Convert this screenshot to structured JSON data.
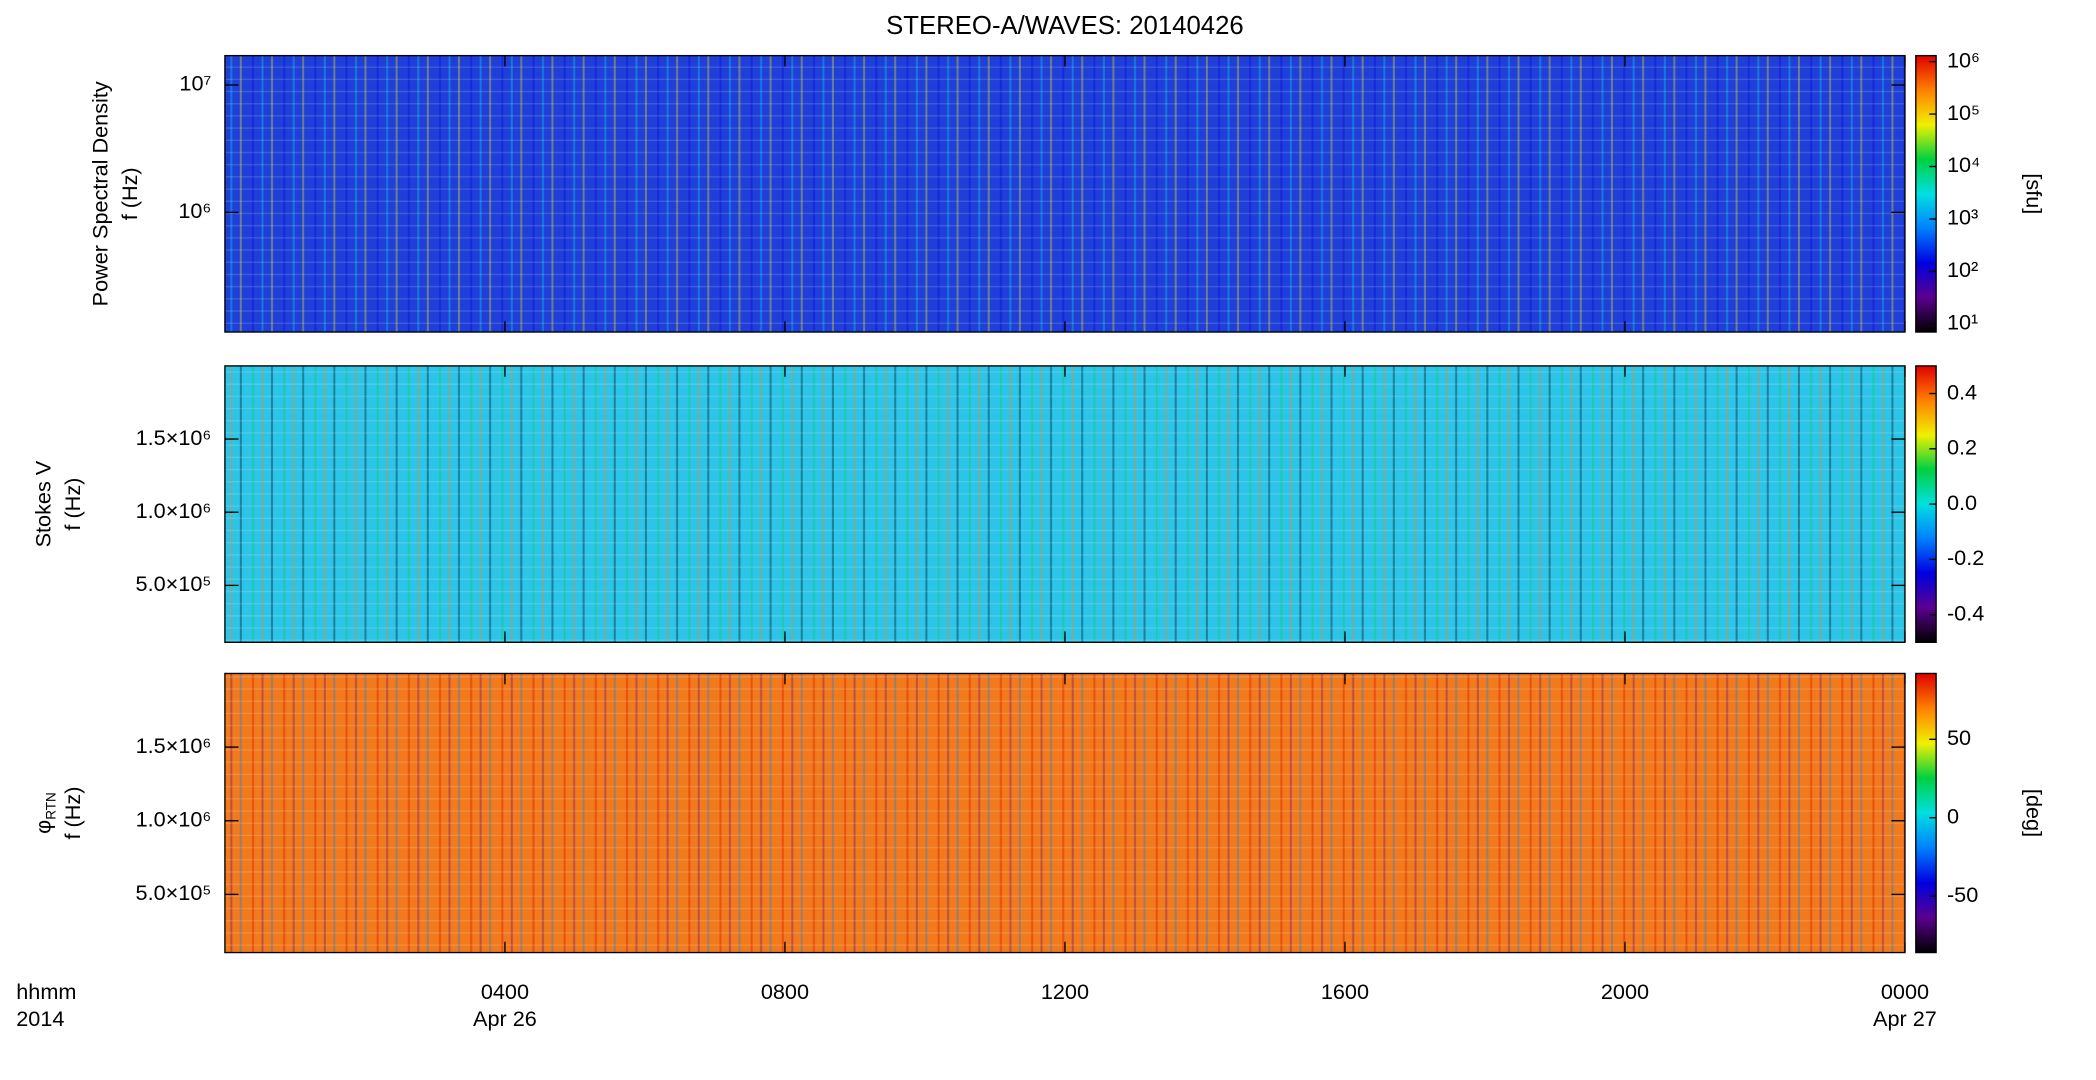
{
  "chart_data": [
    {
      "type": "heatmap",
      "title": "STEREO-A/WAVES: 20140426",
      "ylabel": "Power Spectral Density",
      "ylabel2": "f (Hz)",
      "log": true,
      "ylim": [
        115000,
        17000000
      ],
      "yticks": [
        {
          "value": 1000000,
          "label": "10⁶"
        },
        {
          "value": 10000000,
          "label": "10⁷"
        }
      ],
      "background": "#1f3fd8",
      "colorbar": {
        "label": "[sfu]",
        "log": true,
        "lim": [
          7,
          1300000
        ],
        "ticks": [
          {
            "value": 10,
            "label": "10¹"
          },
          {
            "value": 100,
            "label": "10²"
          },
          {
            "value": 1000,
            "label": "10³"
          },
          {
            "value": 10000,
            "label": "10⁴"
          },
          {
            "value": 100000,
            "label": "10⁵"
          },
          {
            "value": 1000000,
            "label": "10⁶"
          }
        ],
        "colors": [
          "#000000",
          "#5a0090",
          "#0000e0",
          "#0080ff",
          "#00e0e0",
          "#00d040",
          "#f0f000",
          "#ff8000",
          "#e00000"
        ]
      }
    },
    {
      "type": "heatmap",
      "ylabel": "Stokes V",
      "ylabel2": "f (Hz)",
      "log": false,
      "ylim": [
        111000,
        2000000
      ],
      "yticks": [
        {
          "value": 500000,
          "label": "5.0×10⁵"
        },
        {
          "value": 1000000,
          "label": "1.0×10⁶"
        },
        {
          "value": 1500000,
          "label": "1.5×10⁶"
        }
      ],
      "background": "#2cc4e8",
      "colorbar": {
        "log": false,
        "lim": [
          -0.5,
          0.5
        ],
        "ticks": [
          -0.4,
          -0.2,
          {
            "value": 0,
            "label": "0.0"
          },
          0.2,
          0.4
        ],
        "colors": [
          "#000000",
          "#5a0090",
          "#0000e0",
          "#0080ff",
          "#00e0e0",
          "#00d040",
          "#f0f000",
          "#ff8000",
          "#e00000"
        ]
      }
    },
    {
      "type": "heatmap",
      "ylabel_symbol": "φ",
      "ylabel_subscript": "RTN",
      "ylabel2": "f (Hz)",
      "log": false,
      "ylim": [
        105000,
        2000000
      ],
      "yticks": [
        {
          "value": 500000,
          "label": "5.0×10⁵"
        },
        {
          "value": 1000000,
          "label": "1.0×10⁶"
        },
        {
          "value": 1500000,
          "label": "1.5×10⁶"
        }
      ],
      "background": "#f07a1c",
      "colorbar": {
        "label": "[deg]",
        "log": false,
        "lim": [
          -86,
          92
        ],
        "ticks": [
          -50,
          0,
          50
        ],
        "colors": [
          "#000000",
          "#5a0090",
          "#0000e0",
          "#0080ff",
          "#00e0e0",
          "#00d040",
          "#f0f000",
          "#ff8000",
          "#e00000"
        ]
      },
      "xlabel": "hhmm",
      "xlabel2": "2014",
      "xlim": [
        0,
        24
      ],
      "xticks": [
        {
          "value": 4,
          "label": "0400"
        },
        {
          "value": 8,
          "label": "0800"
        },
        {
          "value": 12,
          "label": "1200"
        },
        {
          "value": 16,
          "label": "1600"
        },
        {
          "value": 20,
          "label": "2000"
        },
        {
          "value": 24,
          "label": "0000"
        }
      ],
      "xdates": [
        {
          "value": 4,
          "label": "Apr 26"
        },
        {
          "value": 24,
          "label": "Apr 27"
        }
      ]
    }
  ]
}
